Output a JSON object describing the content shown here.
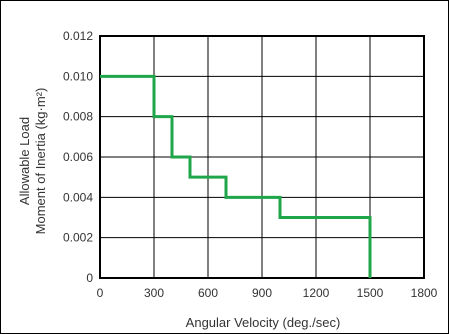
{
  "chart_data": {
    "type": "line",
    "step": true,
    "xlabel": "Angular Velocity (deg./sec)",
    "ylabel_lines": [
      "Allowable Load",
      "Moment of Inertia (kg·m²)"
    ],
    "xlim": [
      0,
      1800
    ],
    "ylim": [
      0,
      0.012
    ],
    "x_ticks": [
      0,
      300,
      600,
      900,
      1200,
      1500,
      1800
    ],
    "x_tick_labels": [
      "0",
      "300",
      "600",
      "900",
      "1200",
      "1500",
      "1800"
    ],
    "y_ticks": [
      0,
      0.002,
      0.004,
      0.006,
      0.008,
      0.01,
      0.012
    ],
    "y_tick_labels": [
      "0",
      "0.002",
      "0.004",
      "0.006",
      "0.008",
      "0.010",
      "0.012"
    ],
    "grid": true,
    "line_color": "#1fa64a",
    "series": [
      {
        "x": [
          0,
          300,
          300,
          400,
          400,
          500,
          500,
          700,
          700,
          1000,
          1000,
          1500,
          1500
        ],
        "y": [
          0.01,
          0.01,
          0.008,
          0.008,
          0.006,
          0.006,
          0.005,
          0.005,
          0.004,
          0.004,
          0.003,
          0.003,
          0
        ]
      }
    ]
  }
}
